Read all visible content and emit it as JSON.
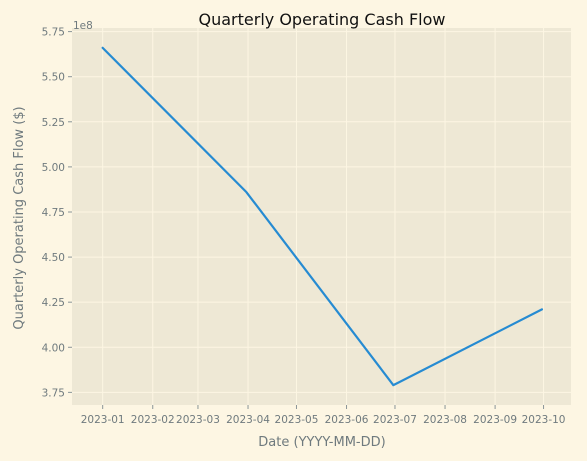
{
  "chart_data": {
    "type": "line",
    "title": "Quarterly Operating Cash Flow",
    "xlabel": "Date (YYYY-MM-DD)",
    "ylabel": "Quarterly Operating Cash Flow ($)",
    "y_offset_label": "1e8",
    "x": [
      "2023-01-01",
      "2023-03-31",
      "2023-06-30",
      "2023-09-30"
    ],
    "series": [
      {
        "values": [
          566000000,
          486000000,
          379000000,
          421000000
        ]
      }
    ],
    "xlim": [
      "2022-12-13",
      "2023-10-18"
    ],
    "ylim": [
      368000000,
      577000000
    ],
    "x_ticks": [
      "2023-01-01",
      "2023-02-01",
      "2023-03-01",
      "2023-04-01",
      "2023-05-01",
      "2023-06-01",
      "2023-07-01",
      "2023-08-01",
      "2023-09-01",
      "2023-10-01"
    ],
    "x_tick_labels": [
      "2023-01",
      "2023-02",
      "2023-03",
      "2023-04",
      "2023-05",
      "2023-06",
      "2023-07",
      "2023-08",
      "2023-09",
      "2023-10"
    ],
    "y_ticks": [
      375000000,
      400000000,
      425000000,
      450000000,
      475000000,
      500000000,
      525000000,
      550000000,
      575000000
    ],
    "y_tick_labels": [
      "3.75",
      "4.00",
      "4.25",
      "4.50",
      "4.75",
      "5.00",
      "5.25",
      "5.50",
      "5.75"
    ],
    "grid": true,
    "colors": {
      "figure_bg": "#fdf6e3",
      "plot_bg": "#eee8d5",
      "line": "#268bd2",
      "text": "#6f7a7e"
    }
  }
}
